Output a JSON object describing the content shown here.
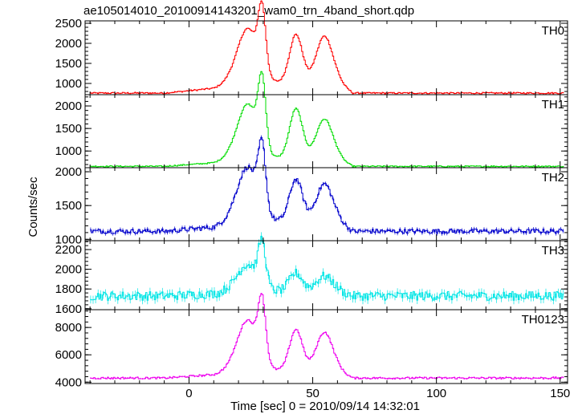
{
  "title": "ae105014010_20100914143201_wam0_trn_4band_short.qdp",
  "ylabel": "Counts/sec",
  "xlabel": "Time [sec] 0 = 2010/09/14 14:32:01",
  "xlim": [
    -42,
    153
  ],
  "xticks": {
    "major": [
      0,
      50,
      100,
      150
    ],
    "labels": [
      "0",
      "50",
      "100",
      "150"
    ],
    "minor_step": 10
  },
  "chart_data": {
    "type": "line",
    "x_start": -40,
    "x_step": 0.5,
    "x_end": 151,
    "series": [
      {
        "name": "TH0",
        "color": "#ff0000",
        "ylim": [
          720,
          2560
        ],
        "yticks": [
          1000,
          1500,
          2000,
          2500
        ],
        "ytick_labels": [
          "1000",
          "1500",
          "2000",
          "2500"
        ],
        "baseline": 760,
        "noise": 18,
        "ramp": [
          [
            -10,
            0
          ],
          [
            10,
            120
          ],
          [
            16,
            260
          ]
        ],
        "peaks": [
          {
            "center": 23.5,
            "width": 4.2,
            "amp": 1350
          },
          {
            "center": 29.3,
            "width": 1.5,
            "amp": 1500
          },
          {
            "center": 43.0,
            "width": 2.6,
            "amp": 1200
          },
          {
            "center": 54.5,
            "width": 3.3,
            "amp": 1160
          }
        ]
      },
      {
        "name": "TH1",
        "color": "#00dd00",
        "ylim": [
          630,
          2250
        ],
        "yticks": [
          1000,
          1500,
          2000
        ],
        "ytick_labels": [
          "1000",
          "1500",
          "2000"
        ],
        "baseline": 660,
        "noise": 14,
        "ramp": [
          [
            -10,
            0
          ],
          [
            10,
            80
          ],
          [
            16,
            180
          ]
        ],
        "peaks": [
          {
            "center": 23.5,
            "width": 4.2,
            "amp": 1200
          },
          {
            "center": 29.3,
            "width": 1.5,
            "amp": 1450
          },
          {
            "center": 43.0,
            "width": 2.6,
            "amp": 1100
          },
          {
            "center": 54.5,
            "width": 3.3,
            "amp": 870
          }
        ]
      },
      {
        "name": "TH2",
        "color": "#0000cc",
        "ylim": [
          980,
          2060
        ],
        "yticks": [
          1000,
          1500,
          2000
        ],
        "ytick_labels": [
          "1000",
          "1500",
          "2000"
        ],
        "baseline": 1120,
        "noise": 35,
        "ramp": [
          [
            -10,
            0
          ],
          [
            10,
            60
          ],
          [
            16,
            150
          ]
        ],
        "peaks": [
          {
            "center": 23.5,
            "width": 4.2,
            "amp": 800
          },
          {
            "center": 29.3,
            "width": 1.5,
            "amp": 900
          },
          {
            "center": 43.0,
            "width": 2.6,
            "amp": 620
          },
          {
            "center": 54.5,
            "width": 3.3,
            "amp": 550
          }
        ]
      },
      {
        "name": "TH3",
        "color": "#00e5e5",
        "ylim": [
          1590,
          2290
        ],
        "yticks": [
          1600,
          1800,
          2000,
          2200
        ],
        "ytick_labels": [
          "1600",
          "1800",
          "2000",
          "2200"
        ],
        "baseline": 1730,
        "noise": 45,
        "ramp": [
          [
            -10,
            0
          ],
          [
            10,
            20
          ],
          [
            16,
            50
          ]
        ],
        "peaks": [
          {
            "center": 23.5,
            "width": 4.2,
            "amp": 270
          },
          {
            "center": 29.3,
            "width": 1.5,
            "amp": 420
          },
          {
            "center": 43.0,
            "width": 2.6,
            "amp": 180
          },
          {
            "center": 54.5,
            "width": 3.3,
            "amp": 150
          }
        ]
      },
      {
        "name": "TH0123",
        "color": "#ee00ee",
        "ylim": [
          3900,
          9300
        ],
        "yticks": [
          4000,
          6000,
          8000
        ],
        "ytick_labels": [
          "4000",
          "6000",
          "8000"
        ],
        "baseline": 4300,
        "noise": 70,
        "ramp": [
          [
            -10,
            0
          ],
          [
            10,
            250
          ],
          [
            16,
            550
          ]
        ],
        "peaks": [
          {
            "center": 23.5,
            "width": 4.2,
            "amp": 3700
          },
          {
            "center": 29.3,
            "width": 1.5,
            "amp": 4200
          },
          {
            "center": 43.0,
            "width": 2.6,
            "amp": 3000
          },
          {
            "center": 54.5,
            "width": 3.3,
            "amp": 2800
          }
        ]
      }
    ]
  }
}
